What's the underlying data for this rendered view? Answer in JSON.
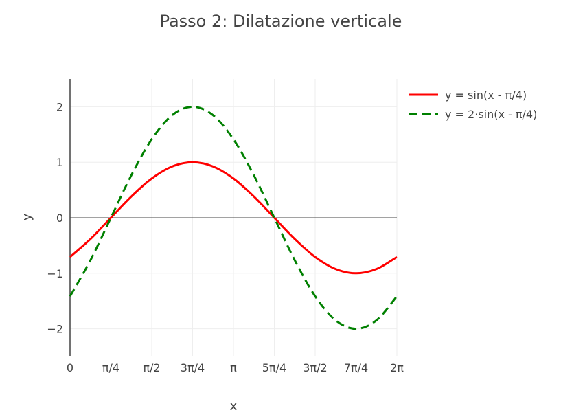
{
  "chart_data": {
    "type": "line",
    "title": "Passo 2: Dilatazione verticale",
    "xlabel": "x",
    "ylabel": "y",
    "xlim": [
      0,
      6.2832
    ],
    "ylim": [
      -2.5,
      2.5
    ],
    "x_ticks": [
      {
        "value": 0,
        "label": "0"
      },
      {
        "value": 0.7854,
        "label": "π/4"
      },
      {
        "value": 1.5708,
        "label": "π/2"
      },
      {
        "value": 2.3562,
        "label": "3π/4"
      },
      {
        "value": 3.1416,
        "label": "π"
      },
      {
        "value": 3.927,
        "label": "5π/4"
      },
      {
        "value": 4.7124,
        "label": "3π/2"
      },
      {
        "value": 5.4978,
        "label": "7π/4"
      },
      {
        "value": 6.2832,
        "label": "2π"
      }
    ],
    "y_ticks": [
      {
        "value": 2,
        "label": "2"
      },
      {
        "value": 1,
        "label": "1"
      },
      {
        "value": 0,
        "label": "0"
      },
      {
        "value": -1,
        "label": "−1"
      },
      {
        "value": -2,
        "label": "−2"
      }
    ],
    "x": [
      0,
      0.3927,
      0.7854,
      1.1781,
      1.5708,
      1.9635,
      2.3562,
      2.7489,
      3.1416,
      3.5343,
      3.927,
      4.3197,
      4.7124,
      5.1051,
      5.4978,
      5.8905,
      6.2832
    ],
    "series": [
      {
        "name": "y = sin(x - π/4)",
        "color": "#ff0000",
        "dash": "solid",
        "values": [
          -0.707,
          -0.383,
          0,
          0.383,
          0.707,
          0.924,
          1,
          0.924,
          0.707,
          0.383,
          0,
          -0.383,
          -0.707,
          -0.924,
          -1,
          -0.924,
          -0.707
        ]
      },
      {
        "name": "y = 2·sin(x - π/4)",
        "color": "#008000",
        "dash": "dash",
        "values": [
          -1.414,
          -0.765,
          0,
          0.765,
          1.414,
          1.848,
          2,
          1.848,
          1.414,
          0.765,
          0,
          -0.765,
          -1.414,
          -1.848,
          -2,
          -1.848,
          -1.414
        ]
      }
    ],
    "grid": true,
    "legend_position": "top-right"
  }
}
